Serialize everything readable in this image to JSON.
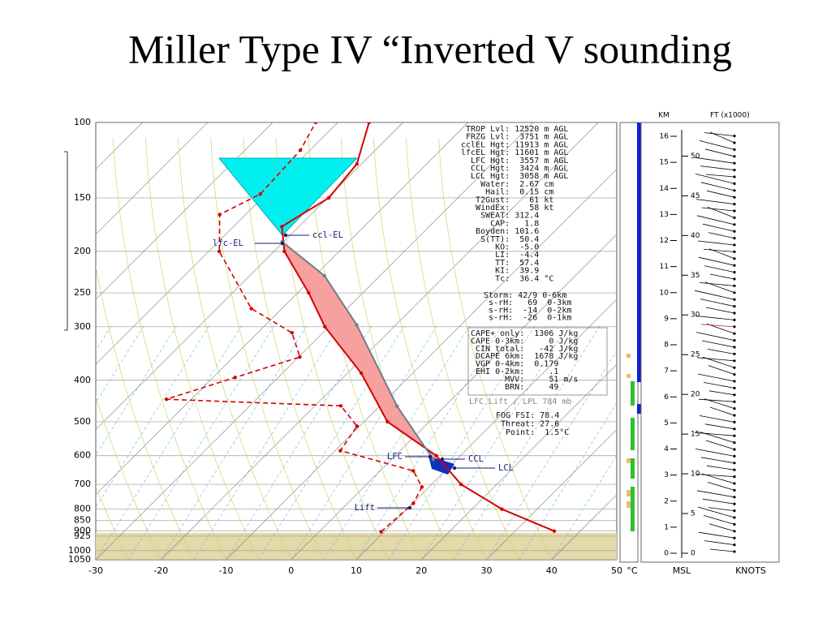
{
  "chart_data": {
    "type": "skewt",
    "title": "Miller Type IV “Inverted V sounding",
    "x_unit": "°C",
    "xlim": [
      -30,
      50
    ],
    "xticks": [
      -30,
      -20,
      -10,
      0,
      10,
      20,
      30,
      40,
      50
    ],
    "ylim": [
      1050,
      100
    ],
    "log_y": true,
    "yticks": [
      100,
      150,
      200,
      250,
      300,
      400,
      500,
      600,
      700,
      800,
      850,
      900,
      925,
      1000,
      1050
    ],
    "series": [
      {
        "color": "#d40000",
        "style": "solid",
        "pressure": [
          900,
          800,
          700,
          600,
          500,
          385,
          300,
          250,
          200,
          175,
          150,
          125,
          100
        ],
        "values": [
          36,
          24.6,
          14.5,
          6.3,
          -6.4,
          -17.9,
          -30.6,
          -38.3,
          -48.4,
          -52.6,
          -49.8,
          -50.7,
          -55.2
        ]
      },
      {
        "color": "#d40000",
        "style": "dashed",
        "pressure": [
          903,
          775,
          710,
          651,
          584,
          512,
          459,
          443,
          394,
          353,
          310,
          272,
          200,
          164,
          147,
          116,
          100
        ],
        "values": [
          9.5,
          10.1,
          8.9,
          5.1,
          -9.2,
          -10.4,
          -16,
          -43.8,
          -36.6,
          -29.8,
          -34.7,
          -44.7,
          -58.4,
          -64,
          -60.9,
          -61.5,
          -63.4
        ]
      },
      {
        "color": "#6f7f86",
        "style": "solid",
        "pressure": [
          612,
          460,
          297,
          228,
          190
        ],
        "values": [
          6.4,
          -7.3,
          -26,
          -38.5,
          -50.2
        ]
      }
    ],
    "annotations": [
      "lfc-EL",
      "ccl-EL",
      "LFC",
      "CCL",
      "LCL",
      "Lift"
    ],
    "readout": [
      " TROP Lvl: 12520 m AGL",
      " FRZG Lvl:  3751 m AGL",
      "cclEL Hgt: 11913 m AGL",
      "lfcEL Hgt: 11601 m AGL",
      "  LFC Hgt:  3557 m AGL",
      "  CCL Hgt:  3424 m AGL",
      "  LCL Hgt:  3058 m AGL",
      "    Water:  2.67 cm",
      "     Hail:  0.15 cm",
      "   T2Gust:    61 kt",
      "   WindEx:    58 kt",
      "    SWEAT: 312.4",
      "      CAP:   1.8",
      "   Boyden: 101.6",
      "    S(TT):  50.4",
      "       KO:  -5.0",
      "       LI:  -4.4",
      "       TT:  57.4",
      "       KI:  39.9",
      "       Tc:  36.4 °C"
    ],
    "storm": [
      "Storm: 42/9 0-6km",
      " s-rH:   69  0-3km",
      " s-rH:  -14  0-2km",
      " s-rH:  -26  0-1km"
    ],
    "cape_box": [
      "CAPE+ only:  1306 J/kg",
      "CAPE 0-3km:     0 J/kg",
      " CIN total:   -42 J/kg",
      " DCAPE 6km:  1678 J/kg",
      " VGP 0-4km:  0.179",
      " EHI 0-2km:     .1",
      "       MVV:     51 m/s",
      "       BRN:     49"
    ],
    "lift_note": "LFC Lift / LPL 784 mb",
    "fog": [
      "FOG FSI: 78.4",
      " Threat: 27.6",
      "  Point:  1.5°C"
    ],
    "height_panel": {
      "km_label": "KM",
      "ft_label": "FT (x1000)",
      "bottom_left": "MSL",
      "bottom_right": "KNOTS",
      "km_lim": [
        0,
        16
      ],
      "km_ticks": [
        0,
        1,
        2,
        3,
        4,
        5,
        6,
        7,
        8,
        9,
        10,
        11,
        12,
        13,
        14,
        15,
        16
      ],
      "ft_ticks": [
        0,
        5,
        10,
        15,
        20,
        25,
        30,
        35,
        40,
        45,
        50
      ]
    }
  }
}
